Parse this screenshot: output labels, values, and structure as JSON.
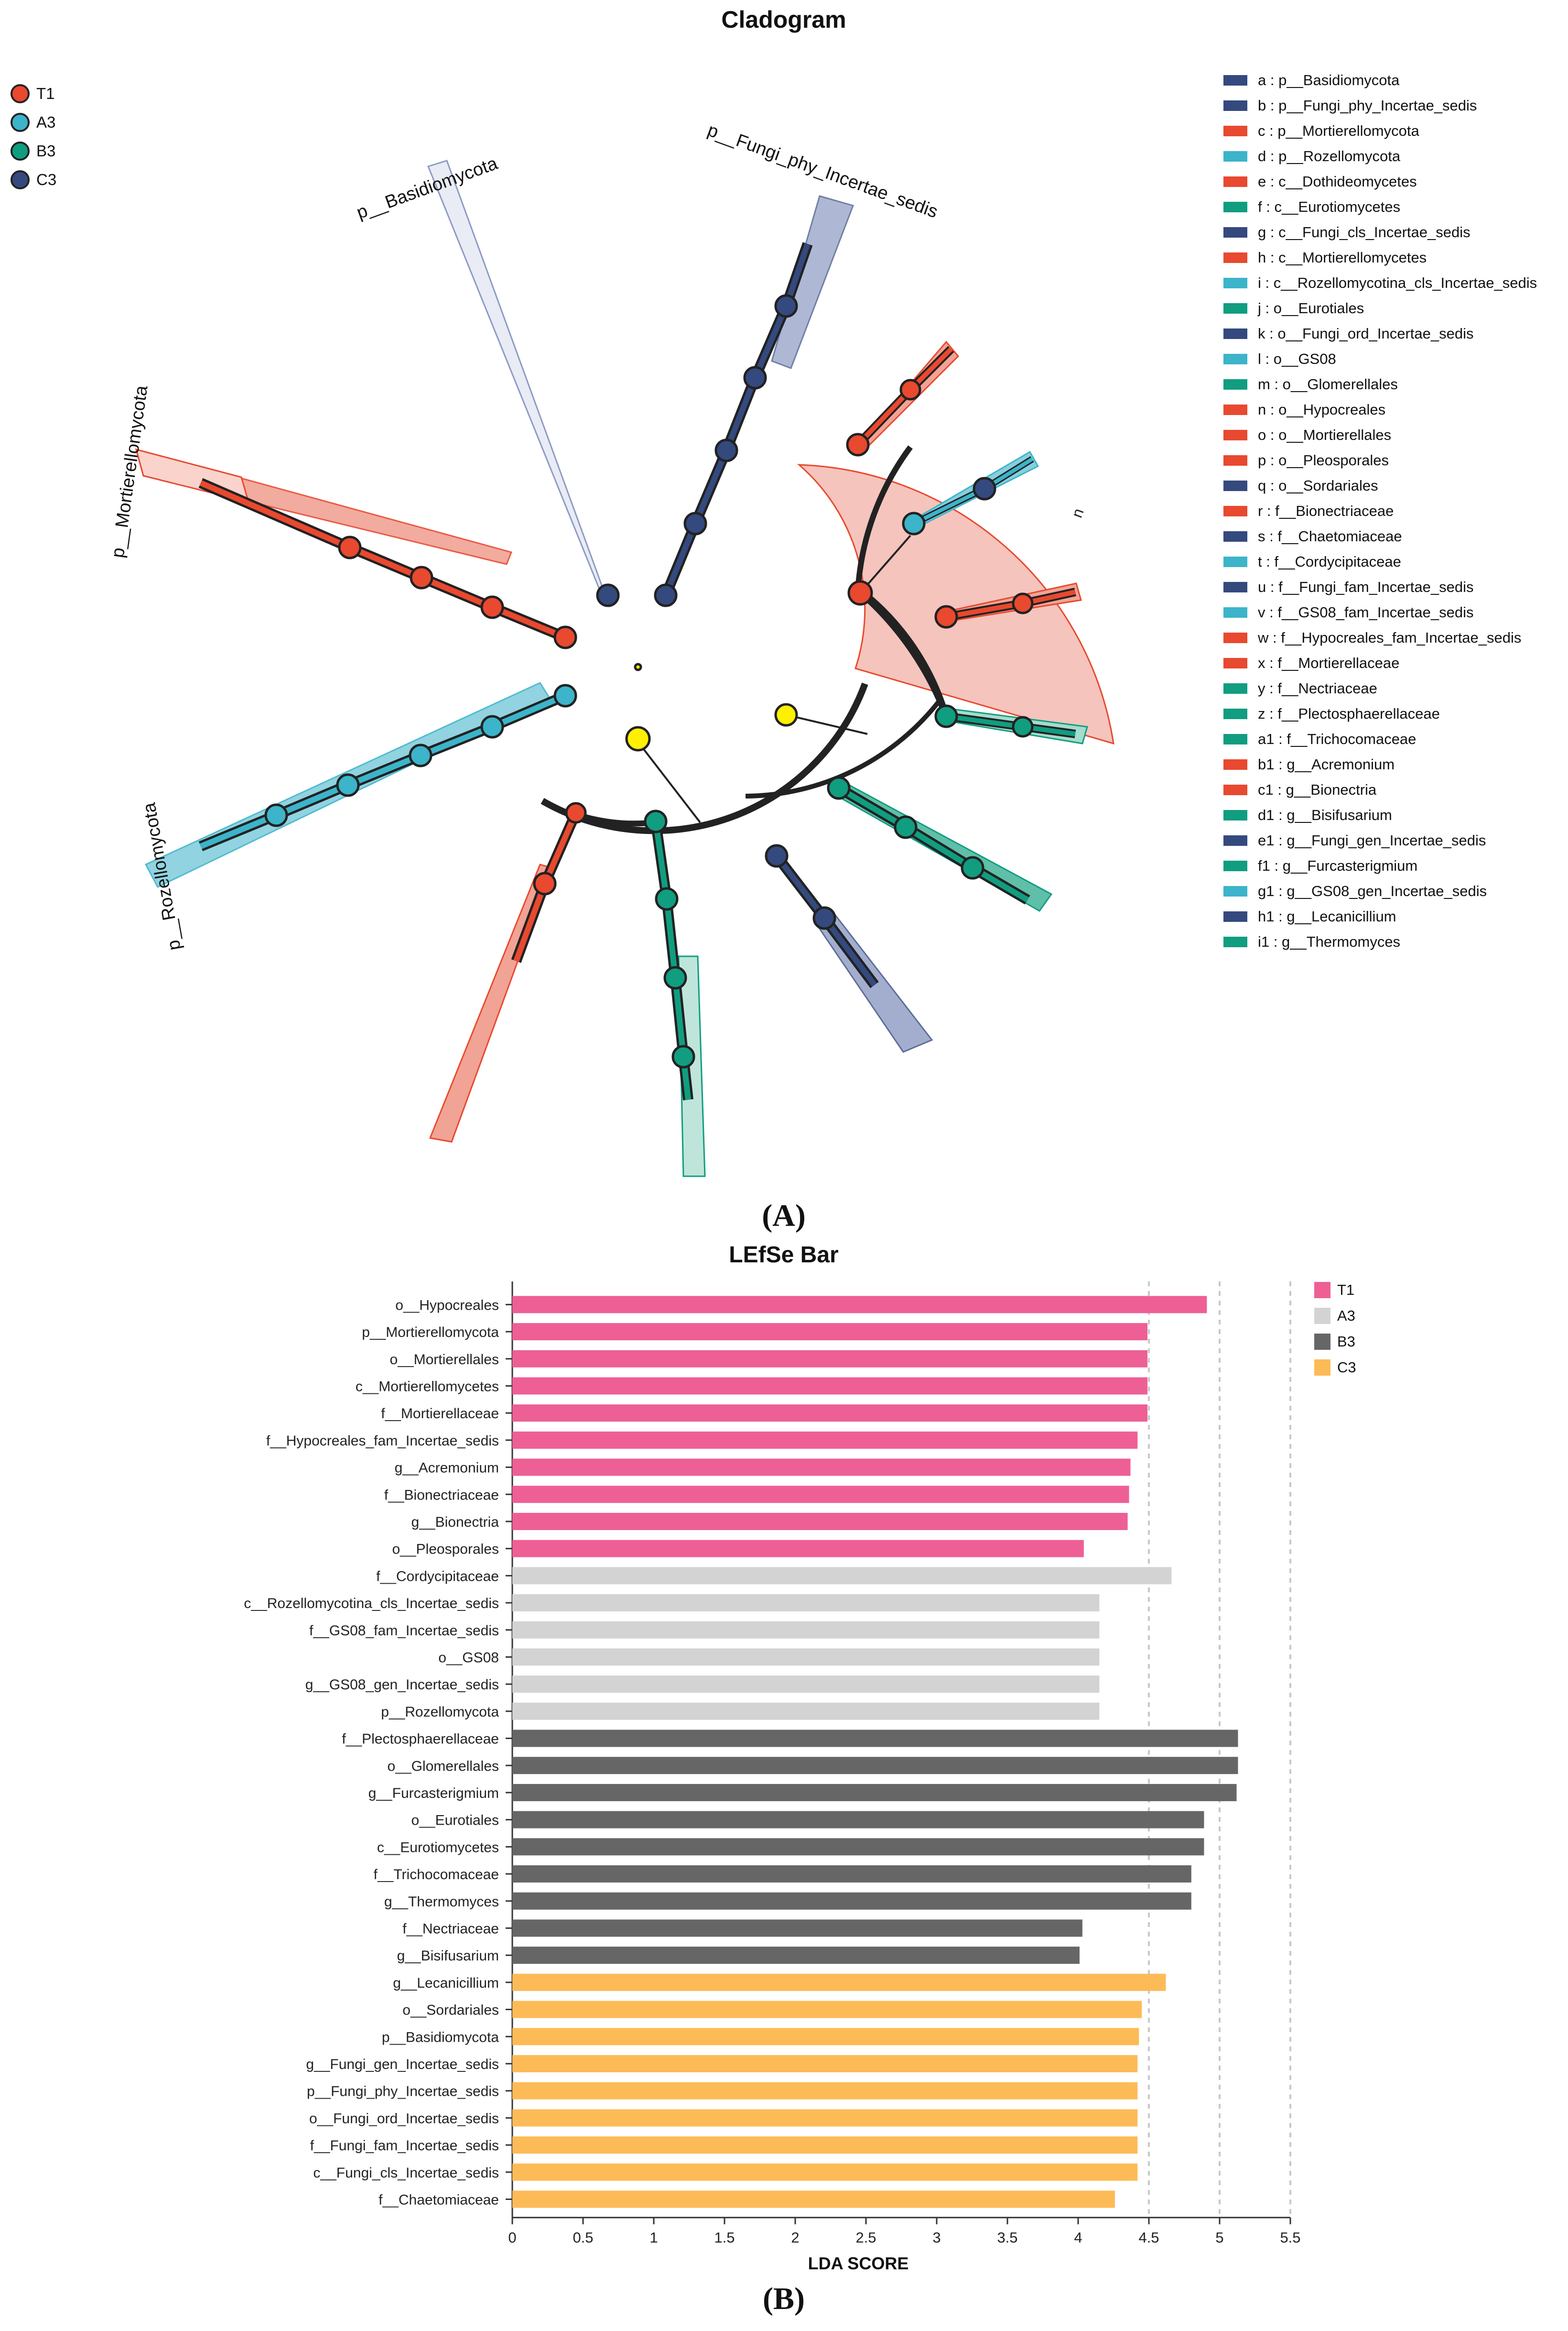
{
  "figure": {
    "panel_a": "(A)",
    "panel_b": "(B)"
  },
  "cladogram": {
    "title": "Cladogram",
    "groups": [
      {
        "name": "T1",
        "color": "#e8492f"
      },
      {
        "name": "A3",
        "color": "#3cb4ca"
      },
      {
        "name": "B3",
        "color": "#119d80"
      },
      {
        "name": "C3",
        "color": "#34497e"
      }
    ],
    "clade_labels": [
      "p__Basidiomycota",
      "p__Fungi_phy_Incertae_sedis",
      "p__Mortierellomycota",
      "p__Rozellomycota"
    ],
    "key": [
      {
        "text": "a : p__Basidiomycota",
        "color": "#34497e"
      },
      {
        "text": "b : p__Fungi_phy_Incertae_sedis",
        "color": "#34497e"
      },
      {
        "text": "c : p__Mortierellomycota",
        "color": "#e8492f"
      },
      {
        "text": "d : p__Rozellomycota",
        "color": "#3cb4ca"
      },
      {
        "text": "e : c__Dothideomycetes",
        "color": "#e8492f"
      },
      {
        "text": "f : c__Eurotiomycetes",
        "color": "#119d80"
      },
      {
        "text": "g : c__Fungi_cls_Incertae_sedis",
        "color": "#34497e"
      },
      {
        "text": "h : c__Mortierellomycetes",
        "color": "#e8492f"
      },
      {
        "text": "i : c__Rozellomycotina_cls_Incertae_sedis",
        "color": "#3cb4ca"
      },
      {
        "text": "j : o__Eurotiales",
        "color": "#119d80"
      },
      {
        "text": "k : o__Fungi_ord_Incertae_sedis",
        "color": "#34497e"
      },
      {
        "text": "l : o__GS08",
        "color": "#3cb4ca"
      },
      {
        "text": "m : o__Glomerellales",
        "color": "#119d80"
      },
      {
        "text": "n : o__Hypocreales",
        "color": "#e8492f"
      },
      {
        "text": "o : o__Mortierellales",
        "color": "#e8492f"
      },
      {
        "text": "p : o__Pleosporales",
        "color": "#e8492f"
      },
      {
        "text": "q : o__Sordariales",
        "color": "#34497e"
      },
      {
        "text": "r : f__Bionectriaceae",
        "color": "#e8492f"
      },
      {
        "text": "s : f__Chaetomiaceae",
        "color": "#34497e"
      },
      {
        "text": "t : f__Cordycipitaceae",
        "color": "#3cb4ca"
      },
      {
        "text": "u : f__Fungi_fam_Incertae_sedis",
        "color": "#34497e"
      },
      {
        "text": "v : f__GS08_fam_Incertae_sedis",
        "color": "#3cb4ca"
      },
      {
        "text": "w : f__Hypocreales_fam_Incertae_sedis",
        "color": "#e8492f"
      },
      {
        "text": "x : f__Mortierellaceae",
        "color": "#e8492f"
      },
      {
        "text": "y : f__Nectriaceae",
        "color": "#119d80"
      },
      {
        "text": "z : f__Plectosphaerellaceae",
        "color": "#119d80"
      },
      {
        "text": "a1 : f__Trichocomaceae",
        "color": "#119d80"
      },
      {
        "text": "b1 : g__Acremonium",
        "color": "#e8492f"
      },
      {
        "text": "c1 : g__Bionectria",
        "color": "#e8492f"
      },
      {
        "text": "d1 : g__Bisifusarium",
        "color": "#119d80"
      },
      {
        "text": "e1 : g__Fungi_gen_Incertae_sedis",
        "color": "#34497e"
      },
      {
        "text": "f1 : g__Furcasterigmium",
        "color": "#119d80"
      },
      {
        "text": "g1 : g__GS08_gen_Incertae_sedis",
        "color": "#3cb4ca"
      },
      {
        "text": "h1 : g__Lecanicillium",
        "color": "#34497e"
      },
      {
        "text": "i1 : g__Thermomyces",
        "color": "#119d80"
      }
    ]
  },
  "lefse": {
    "legend": [
      {
        "name": "T1",
        "color": "#ee5f95"
      },
      {
        "name": "A3",
        "color": "#d3d3d3"
      },
      {
        "name": "B3",
        "color": "#666666"
      },
      {
        "name": "C3",
        "color": "#fdbb57"
      }
    ]
  },
  "chart_data": {
    "type": "bar",
    "orientation": "horizontal",
    "title": "LEfSe Bar",
    "xlabel": "LDA SCORE",
    "ylabel": "",
    "xlim": [
      0,
      5.5
    ],
    "xticks": [
      "0",
      "0.5",
      "1",
      "1.5",
      "2",
      "2.5",
      "3",
      "3.5",
      "4",
      "4.5",
      "5",
      "5.5"
    ],
    "grid": "dashed vertical at 4.5, 5, 5.5",
    "legend_position": "top-right",
    "bars": [
      {
        "label": "o__Hypocreales",
        "value": 4.91,
        "group": "T1"
      },
      {
        "label": "p__Mortierellomycota",
        "value": 4.49,
        "group": "T1"
      },
      {
        "label": "o__Mortierellales",
        "value": 4.49,
        "group": "T1"
      },
      {
        "label": "c__Mortierellomycetes",
        "value": 4.49,
        "group": "T1"
      },
      {
        "label": "f__Mortierellaceae",
        "value": 4.49,
        "group": "T1"
      },
      {
        "label": "f__Hypocreales_fam_Incertae_sedis",
        "value": 4.42,
        "group": "T1"
      },
      {
        "label": "g__Acremonium",
        "value": 4.37,
        "group": "T1"
      },
      {
        "label": "f__Bionectriaceae",
        "value": 4.36,
        "group": "T1"
      },
      {
        "label": "g__Bionectria",
        "value": 4.35,
        "group": "T1"
      },
      {
        "label": "o__Pleosporales",
        "value": 4.04,
        "group": "T1"
      },
      {
        "label": "f__Cordycipitaceae",
        "value": 4.66,
        "group": "A3"
      },
      {
        "label": "c__Rozellomycotina_cls_Incertae_sedis",
        "value": 4.15,
        "group": "A3"
      },
      {
        "label": "f__GS08_fam_Incertae_sedis",
        "value": 4.15,
        "group": "A3"
      },
      {
        "label": "o__GS08",
        "value": 4.15,
        "group": "A3"
      },
      {
        "label": "g__GS08_gen_Incertae_sedis",
        "value": 4.15,
        "group": "A3"
      },
      {
        "label": "p__Rozellomycota",
        "value": 4.15,
        "group": "A3"
      },
      {
        "label": "f__Plectosphaerellaceae",
        "value": 5.13,
        "group": "B3"
      },
      {
        "label": "o__Glomerellales",
        "value": 5.13,
        "group": "B3"
      },
      {
        "label": "g__Furcasterigmium",
        "value": 5.12,
        "group": "B3"
      },
      {
        "label": "o__Eurotiales",
        "value": 4.89,
        "group": "B3"
      },
      {
        "label": "c__Eurotiomycetes",
        "value": 4.89,
        "group": "B3"
      },
      {
        "label": "f__Trichocomaceae",
        "value": 4.8,
        "group": "B3"
      },
      {
        "label": "g__Thermomyces",
        "value": 4.8,
        "group": "B3"
      },
      {
        "label": "f__Nectriaceae",
        "value": 4.03,
        "group": "B3"
      },
      {
        "label": "g__Bisifusarium",
        "value": 4.01,
        "group": "B3"
      },
      {
        "label": "g__Lecanicillium",
        "value": 4.62,
        "group": "C3"
      },
      {
        "label": "o__Sordariales",
        "value": 4.45,
        "group": "C3"
      },
      {
        "label": "p__Basidiomycota",
        "value": 4.43,
        "group": "C3"
      },
      {
        "label": "g__Fungi_gen_Incertae_sedis",
        "value": 4.42,
        "group": "C3"
      },
      {
        "label": "p__Fungi_phy_Incertae_sedis",
        "value": 4.42,
        "group": "C3"
      },
      {
        "label": "o__Fungi_ord_Incertae_sedis",
        "value": 4.42,
        "group": "C3"
      },
      {
        "label": "f__Fungi_fam_Incertae_sedis",
        "value": 4.42,
        "group": "C3"
      },
      {
        "label": "c__Fungi_cls_Incertae_sedis",
        "value": 4.42,
        "group": "C3"
      },
      {
        "label": "f__Chaetomiaceae",
        "value": 4.26,
        "group": "C3"
      }
    ]
  }
}
